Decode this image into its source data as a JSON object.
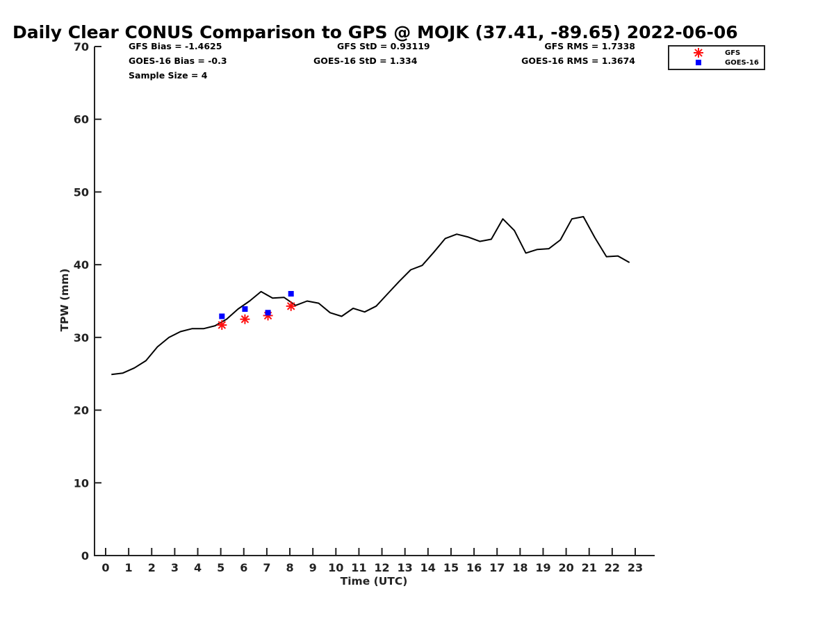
{
  "chart_data": {
    "type": "line",
    "title": "Daily Clear CONUS Comparison to GPS @ MOJK (37.41, -89.65) 2022-06-06",
    "xlabel": "Time (UTC)",
    "ylabel": "TPW (mm)",
    "xlim": [
      -0.5,
      23.7
    ],
    "ylim": [
      0,
      70
    ],
    "xticks": [
      "0",
      "1",
      "2",
      "3",
      "4",
      "5",
      "6",
      "7",
      "8",
      "9",
      "10",
      "11",
      "12",
      "13",
      "14",
      "15",
      "16",
      "17",
      "18",
      "19",
      "20",
      "21",
      "22",
      "23"
    ],
    "yticks": [
      "0",
      "10",
      "20",
      "30",
      "40",
      "50",
      "60",
      "70"
    ],
    "grid": false,
    "legend_position": "top-right",
    "stats": {
      "gfs_bias": "GFS Bias = -1.4625",
      "goes_bias": "GOES-16 Bias = -0.3",
      "sample_size": "Sample Size = 4",
      "gfs_std": "GFS StD = 0.93119",
      "goes_std": "GOES-16 StD = 1.334",
      "gfs_rms": "GFS RMS = 1.7338",
      "goes_rms": "GOES-16 RMS = 1.3674"
    },
    "series": [
      {
        "name": "GPS",
        "color": "#000000",
        "marker": "line",
        "x": [
          0.25,
          0.75,
          1.25,
          1.75,
          2.25,
          2.75,
          3.25,
          3.75,
          4.25,
          4.75,
          5.25,
          5.75,
          6.25,
          6.75,
          7.25,
          7.75,
          8.25,
          8.75,
          9.25,
          9.75,
          10.25,
          10.75,
          11.25,
          11.75,
          12.25,
          12.75,
          13.25,
          13.75,
          14.25,
          14.75,
          15.25,
          15.75,
          16.25,
          16.75,
          17.25,
          17.75,
          18.25,
          18.75,
          19.25,
          19.75,
          20.25,
          20.75,
          21.25,
          21.75,
          22.25,
          22.75
        ],
        "y": [
          24.9,
          25.1,
          25.8,
          26.8,
          28.7,
          30.0,
          30.8,
          31.2,
          31.2,
          31.6,
          32.5,
          33.9,
          35.0,
          36.3,
          35.4,
          35.5,
          34.4,
          35.0,
          34.7,
          33.4,
          32.9,
          34.0,
          33.5,
          34.3,
          36.0,
          37.7,
          39.3,
          39.9,
          41.7,
          43.6,
          44.2,
          43.8,
          43.2,
          43.5,
          46.3,
          44.7,
          41.6,
          42.1,
          42.2,
          43.4,
          46.3,
          46.6,
          43.7,
          41.1,
          41.2,
          40.3
        ]
      },
      {
        "name": "GFS",
        "color": "#ff1010",
        "marker": "asterisk",
        "x": [
          5.05,
          6.05,
          7.05,
          8.05
        ],
        "y": [
          31.7,
          32.5,
          33.0,
          34.3
        ]
      },
      {
        "name": "GOES-16",
        "color": "#0000ff",
        "marker": "square",
        "x": [
          5.05,
          6.05,
          7.05,
          8.05
        ],
        "y": [
          32.9,
          33.9,
          33.4,
          36.0
        ]
      }
    ],
    "legend": [
      "GFS",
      "GOES-16"
    ]
  }
}
